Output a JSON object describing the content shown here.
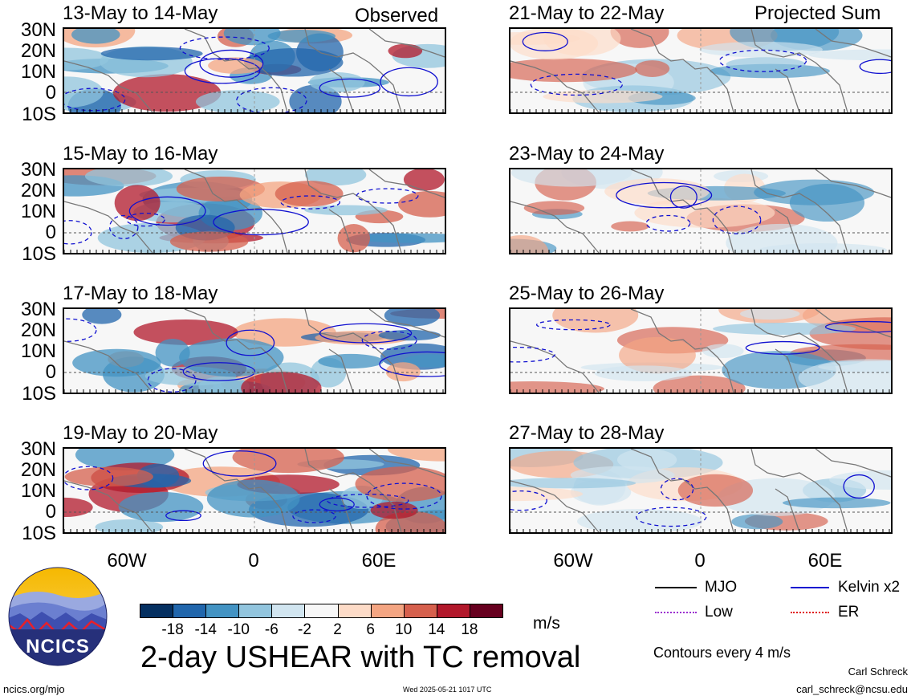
{
  "header": {
    "left_label": "Observed",
    "right_label": "Projected Sum"
  },
  "panels_left": [
    {
      "title": "13-May to 14-May"
    },
    {
      "title": "15-May to 16-May"
    },
    {
      "title": "17-May to 18-May"
    },
    {
      "title": "19-May to 20-May"
    }
  ],
  "panels_right": [
    {
      "title": "21-May to 22-May"
    },
    {
      "title": "23-May to 24-May"
    },
    {
      "title": "25-May to 26-May"
    },
    {
      "title": "27-May to 28-May"
    }
  ],
  "lat_labels": [
    "30N",
    "20N",
    "10N",
    "0",
    "10S"
  ],
  "lon_labels": [
    "60W",
    "0",
    "60E"
  ],
  "colorbar": {
    "colors": [
      "#053061",
      "#2166ac",
      "#4393c3",
      "#92c5de",
      "#d1e5f0",
      "#f7f7f7",
      "#fddbc7",
      "#f4a582",
      "#d6604d",
      "#b2182b",
      "#67001f"
    ],
    "labels": [
      "-18",
      "-14",
      "-10",
      "-6",
      "-2",
      "2",
      "6",
      "10",
      "14",
      "18"
    ],
    "units": "m/s"
  },
  "legend": {
    "mjo": "MJO",
    "kelvin": "Kelvin x2",
    "low": "Low",
    "er": "ER",
    "mjo_color": "#000000",
    "kelvin_color": "#1010d0",
    "low_color": "#9b30d0",
    "er_color": "#e01010"
  },
  "main_title": "2-day USHEAR with TC removal",
  "contour_note": "Contours every 4 m/s",
  "logo_text": "NCICS",
  "footer": {
    "url": "ncics.org/mjo",
    "timestamp": "Wed 2025-05-21 1017 UTC",
    "author": "Carl Schreck",
    "email": "carl_schreck@ncsu.edu"
  }
}
